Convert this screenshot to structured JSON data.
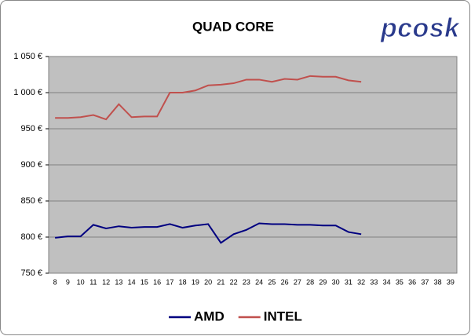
{
  "chart_data": {
    "type": "line",
    "title": "QUAD CORE",
    "logo": "pcosk",
    "categories": [
      8,
      9,
      10,
      11,
      12,
      13,
      14,
      15,
      16,
      17,
      18,
      19,
      20,
      21,
      22,
      23,
      24,
      25,
      26,
      27,
      28,
      29,
      30,
      31,
      32,
      33,
      34,
      35,
      36,
      37,
      38,
      39
    ],
    "series": [
      {
        "name": "AMD",
        "color": "#000080",
        "values": [
          799,
          801,
          801,
          817,
          812,
          815,
          813,
          814,
          814,
          818,
          813,
          816,
          818,
          792,
          804,
          810,
          819,
          818,
          818,
          817,
          817,
          816,
          816,
          807,
          804,
          null,
          null,
          null,
          null,
          null,
          null,
          null
        ]
      },
      {
        "name": "INTEL",
        "color": "#c0504d",
        "values": [
          965,
          965,
          966,
          969,
          963,
          984,
          966,
          967,
          967,
          1000,
          1000,
          1003,
          1010,
          1011,
          1013,
          1018,
          1018,
          1015,
          1019,
          1018,
          1023,
          1022,
          1022,
          1017,
          1015,
          null,
          null,
          null,
          null,
          null,
          null,
          null
        ]
      }
    ],
    "ylim": [
      750,
      1050
    ],
    "yticks": [
      {
        "value": 750,
        "label": "750 €"
      },
      {
        "value": 800,
        "label": "800 €"
      },
      {
        "value": 850,
        "label": "850 €"
      },
      {
        "value": 900,
        "label": "900 €"
      },
      {
        "value": 950,
        "label": "950 €"
      },
      {
        "value": 1000,
        "label": "1 000 €"
      },
      {
        "value": 1050,
        "label": "1 050 €"
      }
    ],
    "grid": true,
    "legend": "bottom"
  }
}
